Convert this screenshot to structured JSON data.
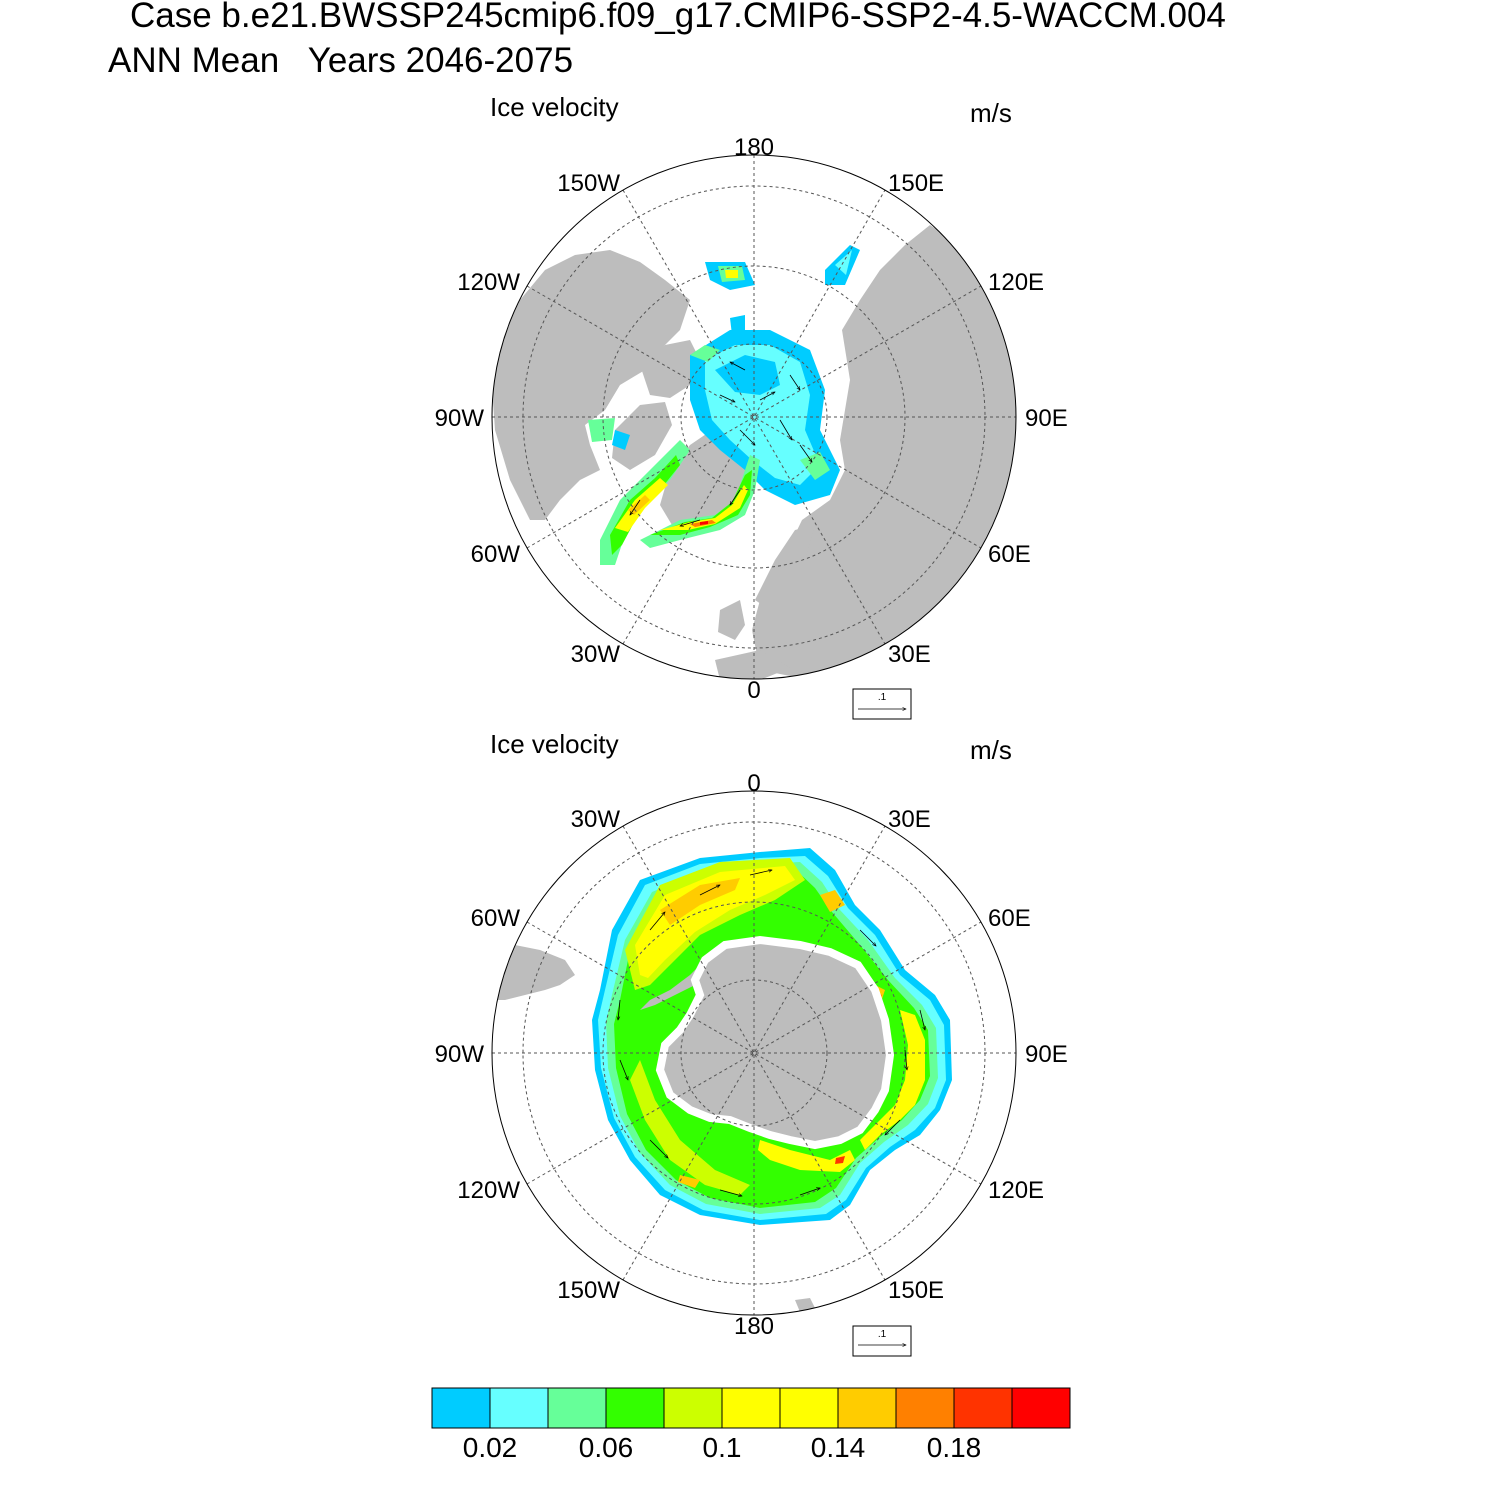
{
  "header": {
    "case_line": "Case b.e21.BWSSP245cmip6.f09_g17.CMIP6-SSP2-4.5-WACCM.004",
    "period_line": "ANN Mean   Years 2046-2075"
  },
  "panels": [
    {
      "hemisphere": "north",
      "field_label": "Ice velocity",
      "units_label": "m/s",
      "lon_labels": [
        "180",
        "150E",
        "120E",
        "90E",
        "60E",
        "30E",
        "0",
        "30W",
        "60W",
        "90W",
        "120W",
        "150W"
      ],
      "ref_vector_label": ".1"
    },
    {
      "hemisphere": "south",
      "field_label": "Ice velocity",
      "units_label": "m/s",
      "lon_labels": [
        "0",
        "30E",
        "60E",
        "90E",
        "120E",
        "150E",
        "180",
        "150W",
        "120W",
        "90W",
        "60W",
        "30W"
      ],
      "ref_vector_label": ".1"
    }
  ],
  "colorbar": {
    "colors": [
      "#00ccff",
      "#66ffff",
      "#66ff99",
      "#33ff00",
      "#ccff00",
      "#ffff00",
      "#ffff00",
      "#ffcc00",
      "#ff8000",
      "#ff3300",
      "#ff0000"
    ],
    "labels": [
      "0.02",
      "0.06",
      "0.1",
      "0.14",
      "0.18"
    ]
  },
  "colors": {
    "land": "#bdbdbd",
    "gridline": "#555555"
  }
}
